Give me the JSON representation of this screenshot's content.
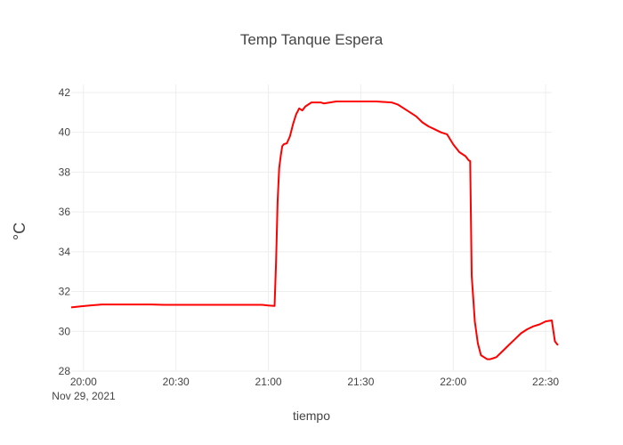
{
  "chart_data": {
    "type": "line",
    "title": "Temp Tanque Espera",
    "xlabel": "tiempo",
    "ylabel": "°C",
    "x_date_label": "Nov 29, 2021",
    "x_tick_labels": [
      "20:00",
      "20:30",
      "21:00",
      "21:30",
      "22:00",
      "22:30"
    ],
    "x_tick_minutes": [
      1200,
      1230,
      1260,
      1290,
      1320,
      1350
    ],
    "y_ticks": [
      28,
      30,
      32,
      34,
      36,
      38,
      40,
      42
    ],
    "xlim_minutes": [
      1196,
      1352
    ],
    "ylim": [
      28,
      42.4
    ],
    "grid": true,
    "line_color": "#ff0000",
    "series": [
      {
        "x_time": [
          "19:56",
          "19:59",
          "20:02",
          "20:06",
          "20:10",
          "20:14",
          "20:18",
          "20:22",
          "20:26",
          "20:30",
          "20:40",
          "20:50",
          "20:58",
          "21:00",
          "21:02",
          "21:02:30",
          "21:03",
          "21:03:30",
          "21:04",
          "21:04:30",
          "21:05",
          "21:06",
          "21:07",
          "21:08",
          "21:09",
          "21:10",
          "21:11",
          "21:12",
          "21:13",
          "21:14",
          "21:15",
          "21:16",
          "21:17",
          "21:18",
          "21:20",
          "21:22",
          "21:24",
          "21:26",
          "21:30",
          "21:35",
          "21:40",
          "21:42",
          "21:44",
          "21:46",
          "21:48",
          "21:50",
          "21:52",
          "21:54",
          "21:56",
          "21:58",
          "22:00",
          "22:02",
          "22:04",
          "22:05",
          "22:05:30",
          "22:06",
          "22:07",
          "22:08",
          "22:09",
          "22:10",
          "22:11",
          "22:12",
          "22:13",
          "22:14",
          "22:16",
          "22:18",
          "22:20",
          "22:22",
          "22:24",
          "22:26",
          "22:28",
          "22:30",
          "22:32",
          "22:33",
          "22:34"
        ],
        "y": [
          31.2,
          31.25,
          31.3,
          31.35,
          31.35,
          31.35,
          31.35,
          31.35,
          31.33,
          31.33,
          31.33,
          31.33,
          31.33,
          31.3,
          31.28,
          33.5,
          36.5,
          38.2,
          38.8,
          39.3,
          39.4,
          39.45,
          39.8,
          40.4,
          40.9,
          41.2,
          41.1,
          41.3,
          41.4,
          41.5,
          41.5,
          41.5,
          41.5,
          41.45,
          41.5,
          41.55,
          41.55,
          41.55,
          41.55,
          41.55,
          41.5,
          41.4,
          41.2,
          41.0,
          40.8,
          40.5,
          40.3,
          40.15,
          40.0,
          39.9,
          39.4,
          39.0,
          38.8,
          38.6,
          38.55,
          32.8,
          30.5,
          29.4,
          28.8,
          28.7,
          28.6,
          28.6,
          28.65,
          28.7,
          29.0,
          29.3,
          29.6,
          29.9,
          30.1,
          30.25,
          30.35,
          30.5,
          30.55,
          29.5,
          29.3
        ]
      }
    ]
  }
}
